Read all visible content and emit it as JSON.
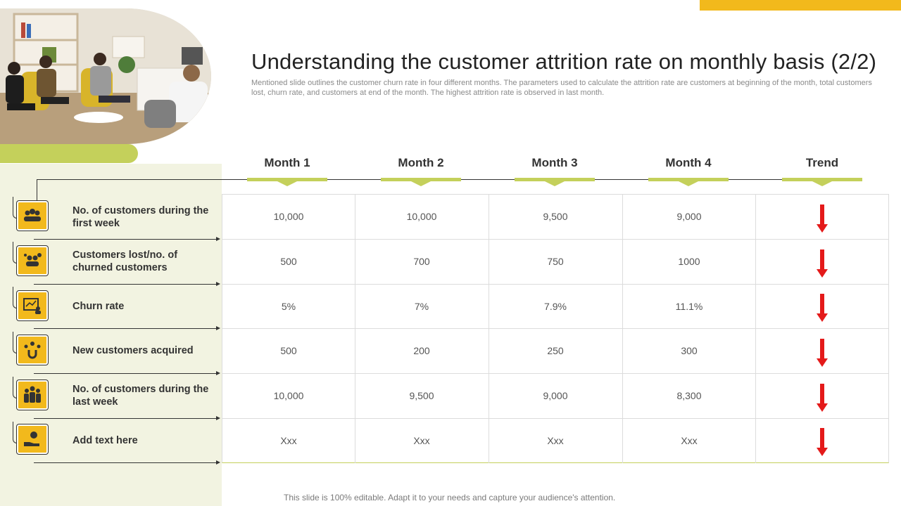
{
  "header": {
    "title": "Understanding the customer attrition rate on monthly basis (2/2)",
    "subtitle": "Mentioned slide outlines the customer churn rate in four different months. The parameters used to calculate the attrition rate are customers at beginning of the month, total customers lost, churn rate, and customers at end of the month. The highest attrition rate is observed in last month."
  },
  "columns": [
    "Month 1",
    "Month 2",
    "Month 3",
    "Month 4",
    "Trend"
  ],
  "rows": [
    {
      "label": "No. of customers during the first week",
      "icon": "group-icon",
      "values": [
        "10,000",
        "10,000",
        "9,500",
        "9,000"
      ],
      "trend": "down"
    },
    {
      "label": "Customers lost/no. of churned customers",
      "icon": "lost-customers-icon",
      "values": [
        "500",
        "700",
        "750",
        "1000"
      ],
      "trend": "down"
    },
    {
      "label": "Churn rate",
      "icon": "churn-chart-icon",
      "values": [
        "5%",
        "7%",
        "7.9%",
        "11.1%"
      ],
      "trend": "down"
    },
    {
      "label": "New customers acquired",
      "icon": "magnet-customers-icon",
      "values": [
        "500",
        "200",
        "250",
        "300"
      ],
      "trend": "down"
    },
    {
      "label": "No. of customers during the last week",
      "icon": "team-icon",
      "values": [
        "10,000",
        "9,500",
        "9,000",
        "8,300"
      ],
      "trend": "down"
    },
    {
      "label": "Add text here",
      "icon": "hand-money-icon",
      "values": [
        "Xxx",
        "Xxx",
        "Xxx",
        "Xxx"
      ],
      "trend": "down"
    }
  ],
  "footer": "This slide is 100% editable. Adapt it to your needs and capture your audience's attention.",
  "colors": {
    "accent_yellow": "#f2b91c",
    "accent_green": "#c4d05b",
    "panel": "#f2f3e1",
    "trend_red": "#e41a1a"
  }
}
